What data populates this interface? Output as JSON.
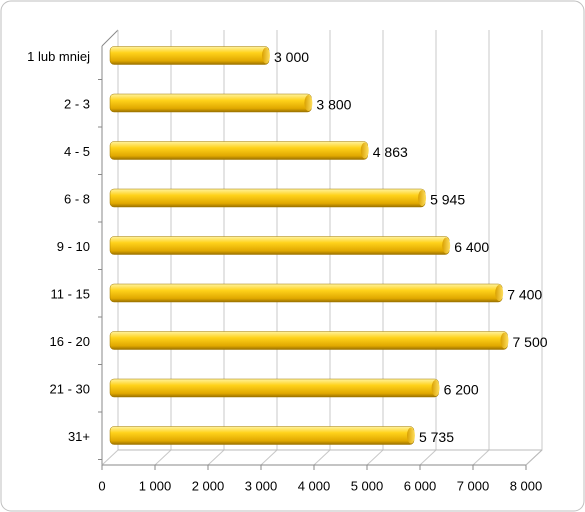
{
  "chart_data": {
    "type": "bar",
    "orientation": "horizontal",
    "categories": [
      "1 lub mniej",
      "2 - 3",
      "4 - 5",
      "6 - 8",
      "9 - 10",
      "11 - 15",
      "16 - 20",
      "21 - 30",
      "31+"
    ],
    "values": [
      3000,
      3800,
      4863,
      5945,
      6400,
      7400,
      7500,
      6200,
      5735
    ],
    "value_labels": [
      "3 000",
      "3 800",
      "4 863",
      "5 945",
      "6 400",
      "7 400",
      "7 500",
      "6 200",
      "5 735"
    ],
    "color": "#f2c200",
    "xlim": [
      0,
      8000
    ],
    "xticks": [
      0,
      {
        "value": 1000,
        "label": "1 000"
      },
      {
        "value": 2000,
        "label": "2 000"
      },
      {
        "value": 3000,
        "label": "3 000"
      },
      {
        "value": 4000,
        "label": "4 000"
      },
      {
        "value": 5000,
        "label": "5 000"
      },
      {
        "value": 6000,
        "label": "6 000"
      },
      {
        "value": 7000,
        "label": "7 000"
      },
      {
        "value": 8000,
        "label": "8 000"
      }
    ],
    "grid": true
  }
}
